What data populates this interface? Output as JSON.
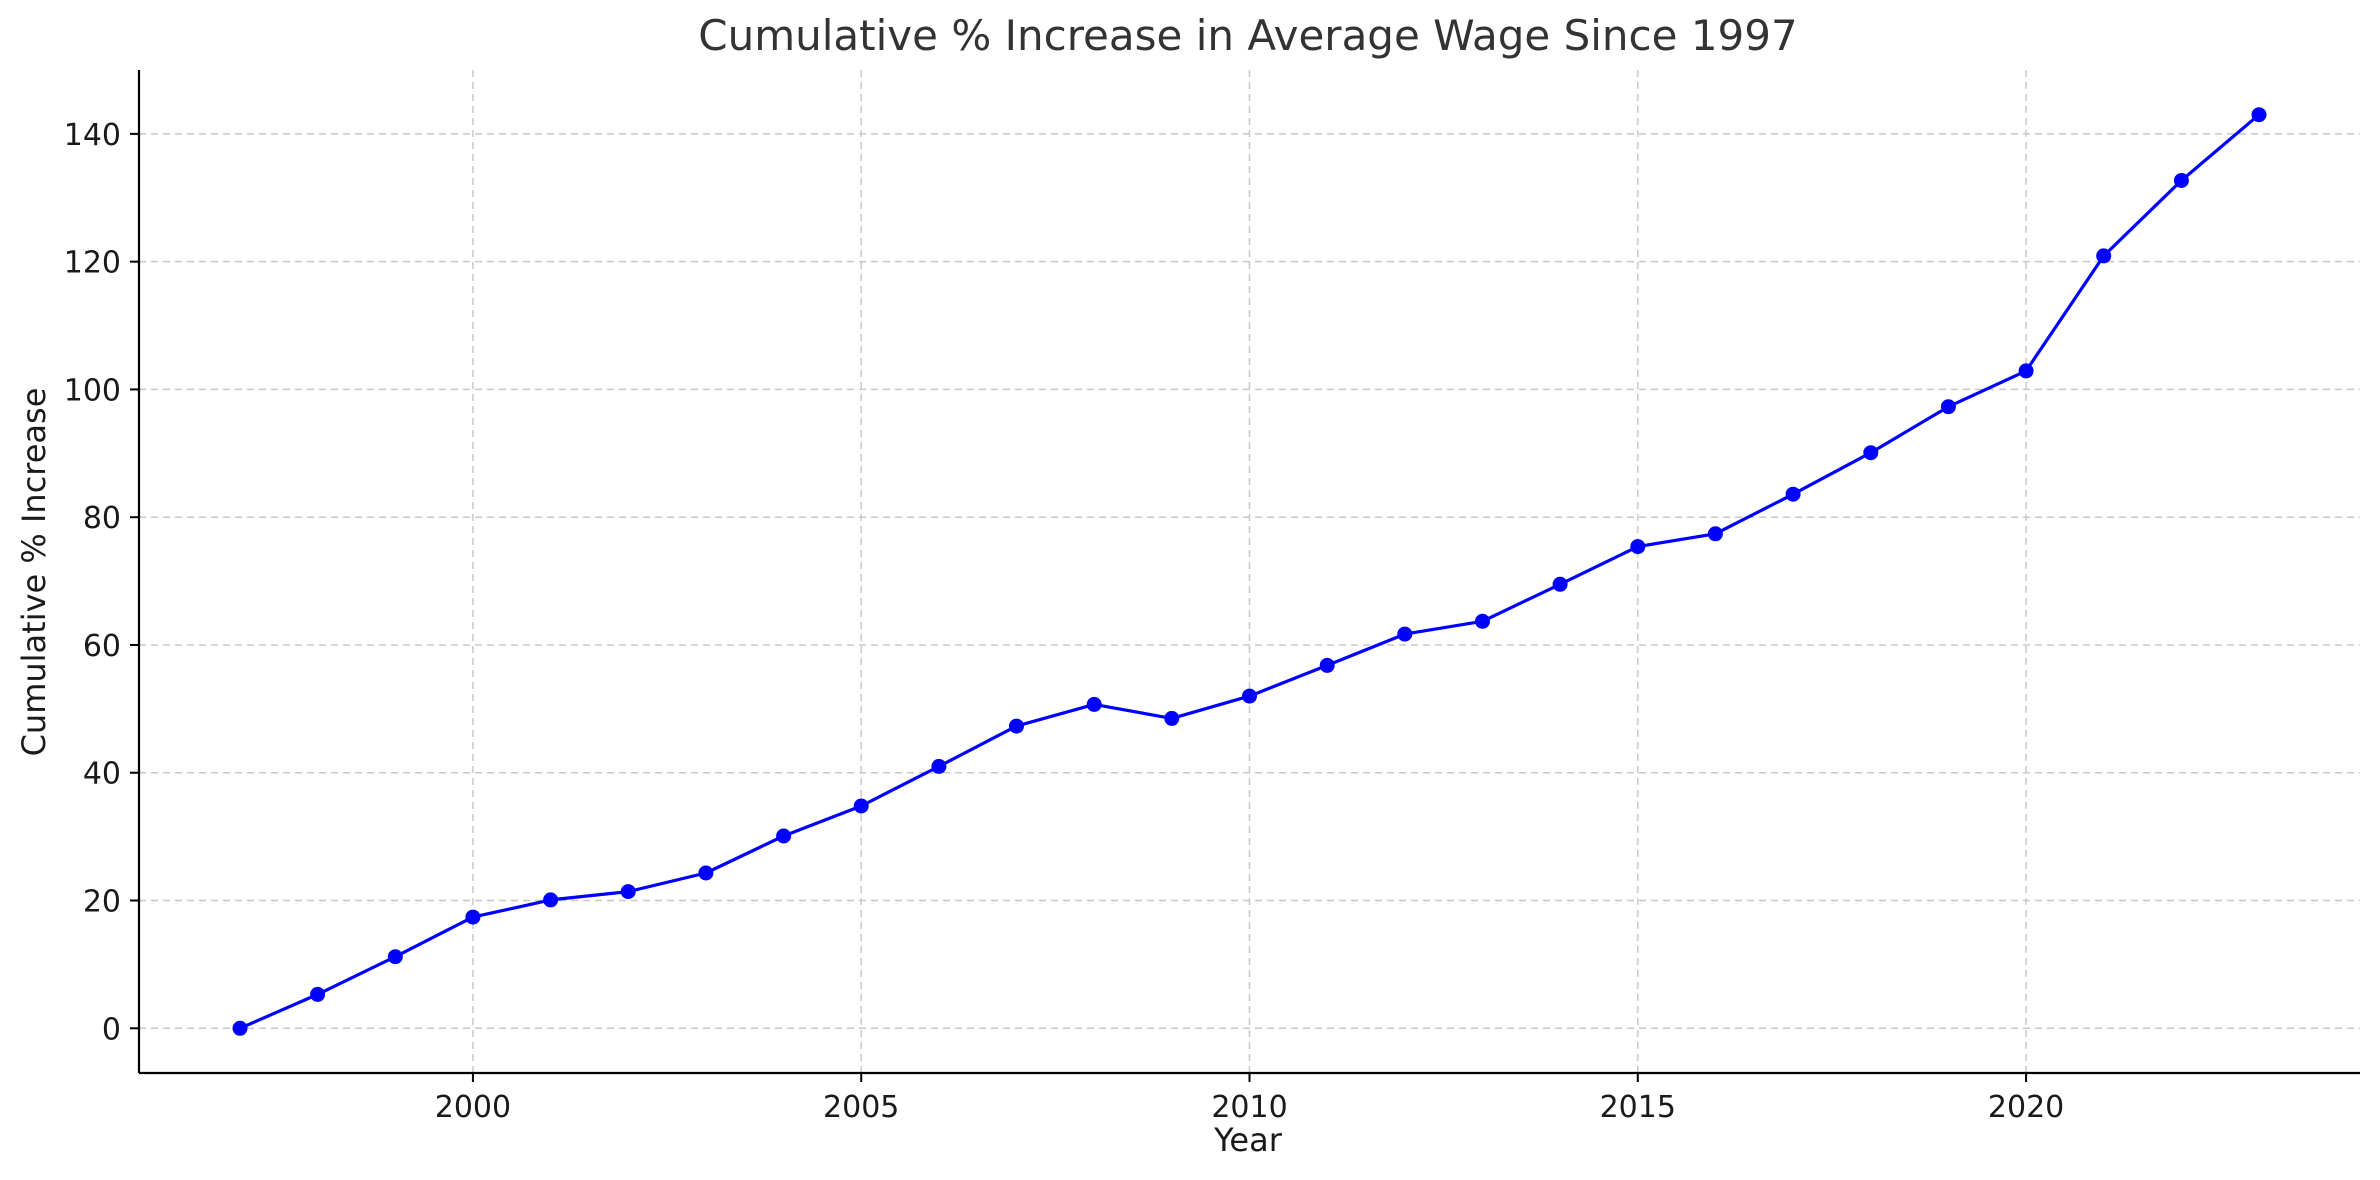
{
  "chart_data": {
    "type": "line",
    "title": "Cumulative % Increase in Average Wage Since 1997",
    "xlabel": "Year",
    "ylabel": "Cumulative % Increase",
    "xlim": [
      1995.7,
      2024.3
    ],
    "ylim": [
      -7,
      150
    ],
    "x_ticks": [
      2000,
      2005,
      2010,
      2015,
      2020
    ],
    "y_ticks": [
      0,
      20,
      40,
      60,
      80,
      100,
      120,
      140
    ],
    "grid": true,
    "line_color": "#0000ff",
    "series": [
      {
        "x": [
          1997,
          1998,
          1999,
          2000,
          2001,
          2002,
          2003,
          2004,
          2005,
          2006,
          2007,
          2008,
          2009,
          2010,
          2011,
          2012,
          2013,
          2014,
          2015,
          2016,
          2017,
          2018,
          2019,
          2020,
          2021,
          2022,
          2023
        ],
        "values": [
          0,
          5.3,
          11.2,
          17.4,
          20.1,
          21.4,
          24.3,
          30.1,
          34.8,
          41.0,
          47.3,
          50.7,
          48.5,
          52.0,
          56.8,
          61.7,
          63.7,
          69.5,
          75.4,
          77.4,
          83.6,
          90.1,
          97.3,
          102.9,
          120.9,
          132.7,
          143.0
        ]
      }
    ]
  }
}
